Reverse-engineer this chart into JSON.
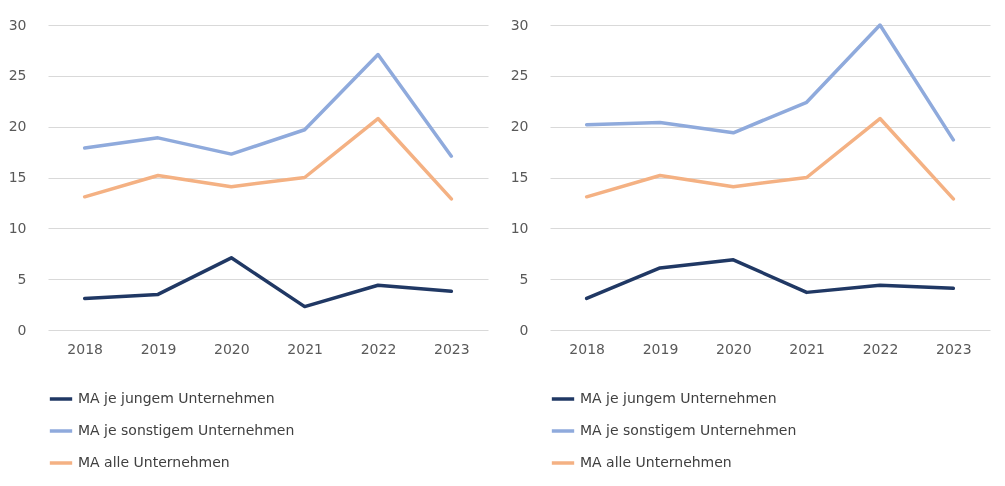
{
  "chart_data": [
    {
      "type": "line",
      "categories": [
        "2018",
        "2019",
        "2020",
        "2021",
        "2022",
        "2023"
      ],
      "ylim": [
        0,
        30
      ],
      "yticks": [
        0,
        5,
        10,
        15,
        20,
        25,
        30
      ],
      "grid": "y",
      "legend": "bottom",
      "line_style": "solid",
      "series": [
        {
          "name": "MA je jungem Unternehmen",
          "color": "#203864",
          "values": [
            3.1,
            3.5,
            7.1,
            2.3,
            4.4,
            3.8
          ]
        },
        {
          "name": "MA je sonstigem Unternehmen",
          "color": "#8faadc",
          "values": [
            17.9,
            18.9,
            17.3,
            19.7,
            27.1,
            17.1
          ]
        },
        {
          "name": "MA alle Unternehmen",
          "color": "#f4b183",
          "values": [
            13.1,
            15.2,
            14.1,
            15.0,
            20.8,
            12.9
          ]
        }
      ]
    },
    {
      "type": "line",
      "categories": [
        "2018",
        "2019",
        "2020",
        "2021",
        "2022",
        "2023"
      ],
      "ylim": [
        0,
        30
      ],
      "yticks": [
        0,
        5,
        10,
        15,
        20,
        25,
        30
      ],
      "grid": "y",
      "legend": "bottom",
      "line_style": "solid",
      "series": [
        {
          "name": "MA je jungem Unternehmen",
          "color": "#203864",
          "values": [
            3.1,
            6.1,
            6.9,
            3.7,
            4.4,
            4.1
          ]
        },
        {
          "name": "MA je sonstigem Unternehmen",
          "color": "#8faadc",
          "values": [
            20.2,
            20.4,
            19.4,
            22.4,
            30,
            18.7
          ]
        },
        {
          "name": "MA alle Unternehmen",
          "color": "#f4b183",
          "values": [
            13.1,
            15.2,
            14.1,
            15.0,
            20.8,
            12.9
          ]
        }
      ]
    }
  ]
}
